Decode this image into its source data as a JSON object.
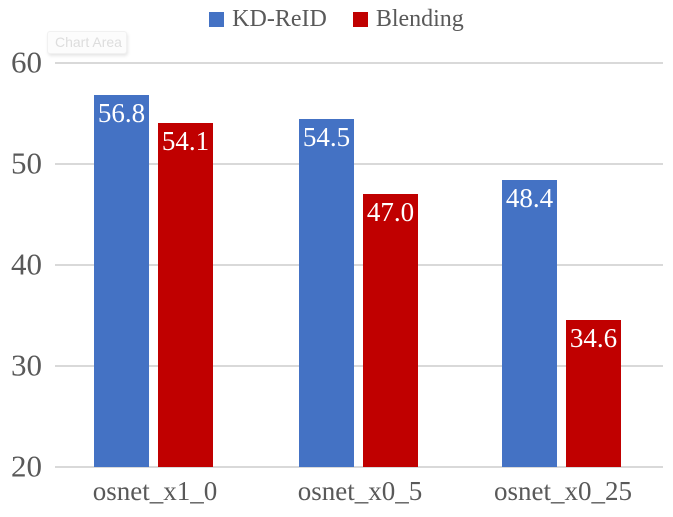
{
  "ui": {
    "tooltip": "Chart Area"
  },
  "colors": {
    "background": "#FFFFFF",
    "gridline": "#D9D9D9",
    "axis_text": "#595959",
    "legend_text": "#595959",
    "bar_label_text": "#FFFFFF",
    "series_blue": "#4472C4",
    "series_red": "#C00000"
  },
  "chart_data": {
    "type": "bar",
    "title": "",
    "xlabel": "",
    "ylabel": "",
    "categories": [
      "osnet_x1_0",
      "osnet_x0_5",
      "osnet_x0_25"
    ],
    "series": [
      {
        "name": "KD-ReID",
        "color": "#4472C4",
        "values": [
          56.8,
          54.5,
          48.4
        ]
      },
      {
        "name": "Blending",
        "color": "#C00000",
        "values": [
          54.1,
          47.0,
          34.6
        ]
      }
    ],
    "data_labels": [
      [
        "56.8",
        "54.5",
        "48.4"
      ],
      [
        "54.1",
        "47.0",
        "34.6"
      ]
    ],
    "ylim": [
      20,
      60
    ],
    "yticks": [
      20,
      30,
      40,
      50,
      60
    ],
    "grid": true,
    "legend_position": "top"
  }
}
